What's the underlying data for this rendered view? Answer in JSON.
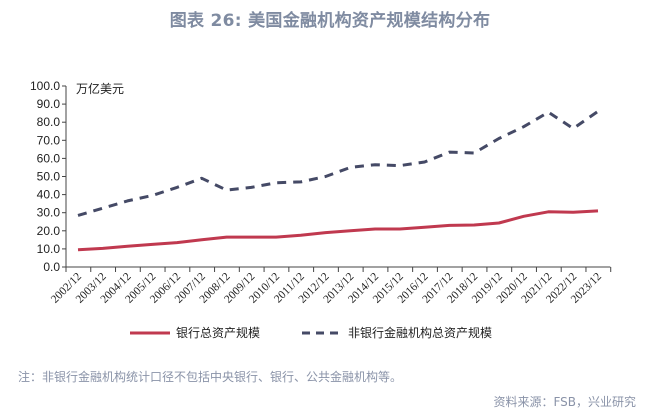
{
  "header": {
    "title": "图表 26: 美国金融机构资产规模结构分布"
  },
  "chart_data": {
    "type": "line",
    "title": "图表 26: 美国金融机构资产规模结构分布",
    "unit_label": "万亿美元",
    "xlabel": "",
    "ylabel": "万亿美元",
    "ylim": [
      0,
      100
    ],
    "yticks": [
      "0.0",
      "10.0",
      "20.0",
      "30.0",
      "40.0",
      "50.0",
      "60.0",
      "70.0",
      "80.0",
      "90.0",
      "100.0"
    ],
    "grid": false,
    "legend_position": "bottom",
    "categories": [
      "2002/12",
      "2003/12",
      "2004/12",
      "2005/12",
      "2006/12",
      "2007/12",
      "2008/12",
      "2009/12",
      "2010/12",
      "2011/12",
      "2012/12",
      "2013/12",
      "2014/12",
      "2015/12",
      "2016/12",
      "2017/12",
      "2018/12",
      "2019/12",
      "2020/12",
      "2021/12",
      "2022/12",
      "2023/12"
    ],
    "series": [
      {
        "name": "银行总资产规模",
        "style": "solid",
        "color": "#c0394f",
        "values": [
          9.5,
          10.3,
          11.5,
          12.5,
          13.5,
          15.0,
          16.5,
          16.5,
          16.5,
          17.5,
          19.0,
          20.0,
          21.0,
          21.0,
          22.0,
          23.0,
          23.2,
          24.3,
          28.0,
          30.5,
          30.2,
          31.0
        ]
      },
      {
        "name": "非银行金融机构总资产规模",
        "style": "dashed",
        "color": "#454a66",
        "values": [
          28.5,
          32.5,
          36.5,
          39.5,
          44.0,
          49.0,
          42.5,
          44.0,
          46.5,
          47.0,
          50.0,
          55.0,
          56.5,
          56.0,
          58.0,
          63.5,
          63.0,
          71.0,
          77.5,
          85.5,
          76.5,
          86.0
        ]
      }
    ]
  },
  "footer": {
    "note": "注：非银行金融机构统计口径不包括中央银行、银行、公共金融机构等。",
    "source": "资料来源：FSB，兴业研究"
  }
}
